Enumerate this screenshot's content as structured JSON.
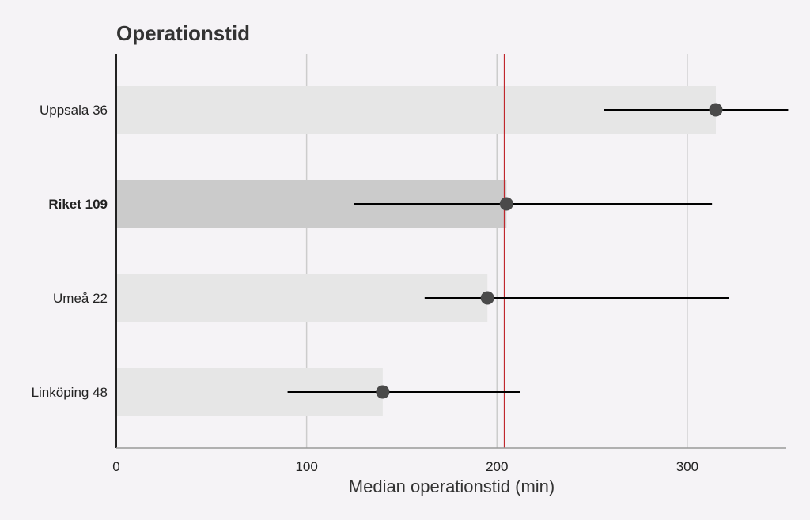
{
  "chart_data": {
    "type": "bar",
    "title": "Operationstid",
    "xlabel": "Median operationstid (min)",
    "ylabel": "",
    "xlim": [
      0,
      352
    ],
    "xticks": [
      0,
      100,
      200,
      300
    ],
    "grid": "vertical",
    "reference_line": {
      "value": 204,
      "color": "#c0272d"
    },
    "categories": [
      {
        "label": "Uppsala 36",
        "bold": false,
        "value": 315,
        "ci_low": 256,
        "ci_high": 353,
        "bar_color": "#e6e6e6"
      },
      {
        "label": "Riket 109",
        "bold": true,
        "value": 205,
        "ci_low": 125,
        "ci_high": 313,
        "bar_color": "#cbcbcb"
      },
      {
        "label": "Umeå 22",
        "bold": false,
        "value": 195,
        "ci_low": 162,
        "ci_high": 322,
        "bar_color": "#e6e6e6"
      },
      {
        "label": "Linköping 48",
        "bold": false,
        "value": 140,
        "ci_low": 90,
        "ci_high": 212,
        "bar_color": "#e6e6e6"
      }
    ],
    "colors": {
      "point": "#4a4a4a",
      "ci_line": "#000000",
      "grid": "#cccccc",
      "axis": "#222222"
    }
  }
}
